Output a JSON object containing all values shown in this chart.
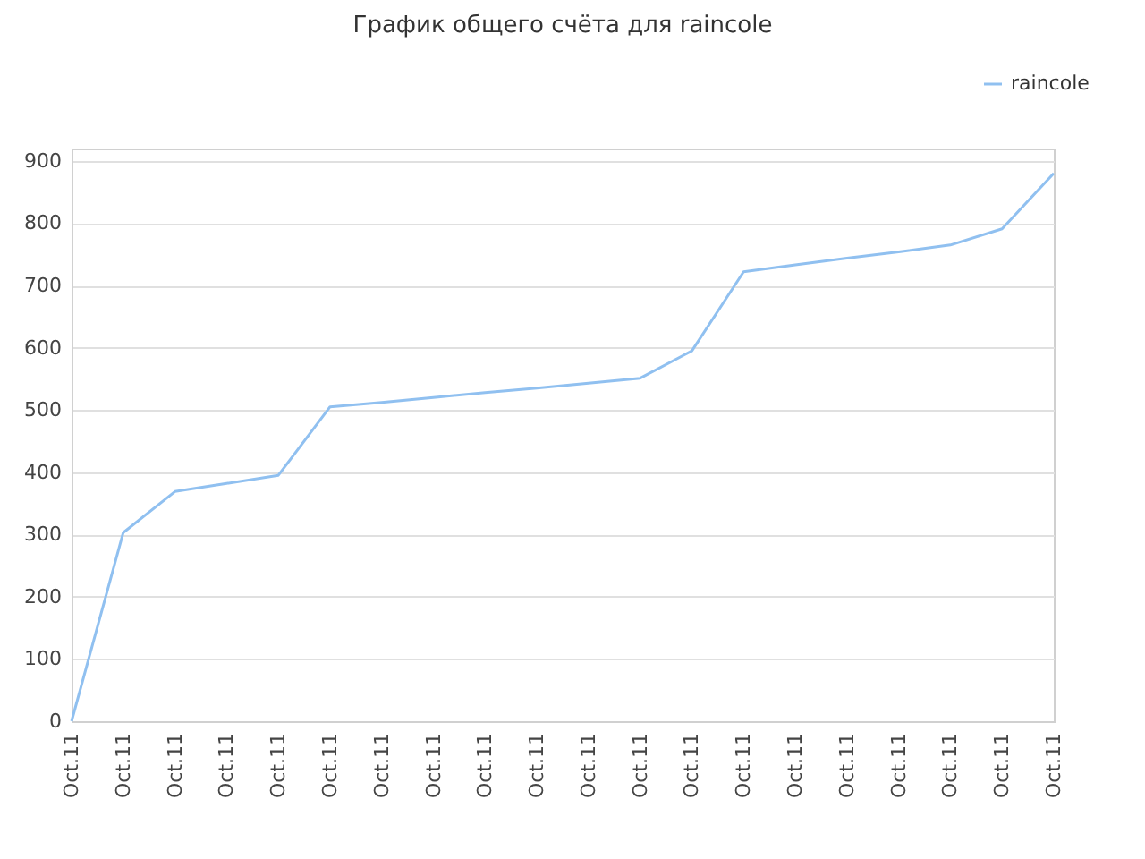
{
  "chart_data": {
    "type": "line",
    "title": "График общего счёта для raincole",
    "categories": [
      "Oct.11",
      "Oct.11",
      "Oct.11",
      "Oct.11",
      "Oct.11",
      "Oct.11",
      "Oct.11",
      "Oct.11",
      "Oct.11",
      "Oct.11",
      "Oct.11",
      "Oct.11",
      "Oct.11",
      "Oct.11",
      "Oct.11",
      "Oct.11",
      "Oct.11",
      "Oct.11",
      "Oct.11",
      "Oct.11"
    ],
    "series": [
      {
        "name": "raincole",
        "color": "#90c0f0",
        "values": [
          0,
          303,
          369,
          382,
          395,
          505,
          512,
          520,
          528,
          535,
          543,
          551,
          595,
          722,
          733,
          744,
          754,
          765,
          791,
          880
        ]
      }
    ],
    "ylim": [
      0,
      920
    ],
    "yticks": [
      0,
      100,
      200,
      300,
      400,
      500,
      600,
      700,
      800,
      900
    ],
    "grid": "y",
    "legend": "top right",
    "marker": "none",
    "line_style": "solid"
  }
}
